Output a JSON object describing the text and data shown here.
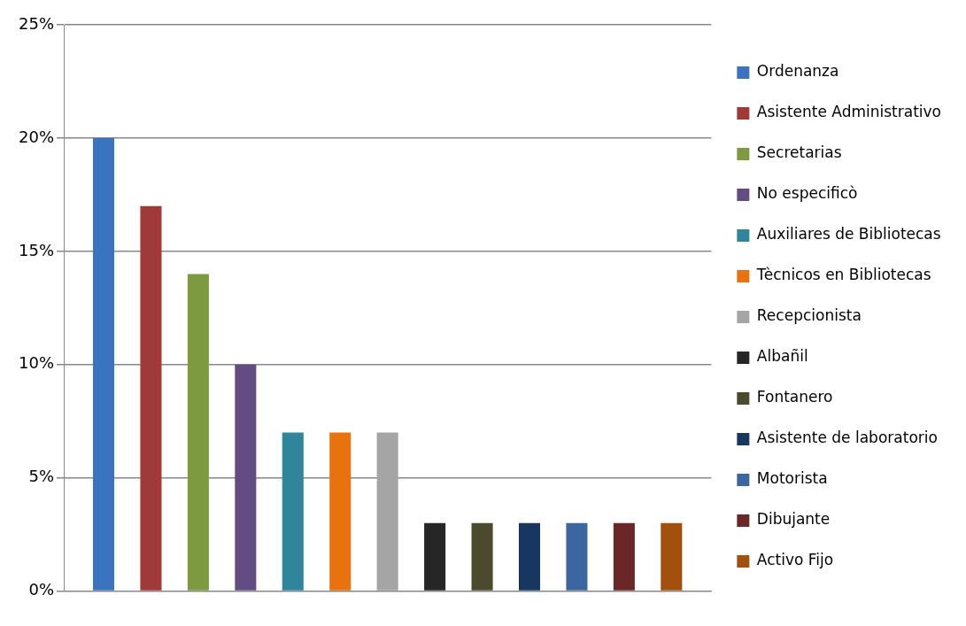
{
  "chart_data": {
    "type": "bar",
    "categories": [
      null
    ],
    "series": [
      {
        "name": "Ordenanza",
        "color": "#3a73c0",
        "values": [
          20
        ]
      },
      {
        "name": "Asistente Administrativo",
        "color": "#a03a38",
        "values": [
          17
        ]
      },
      {
        "name": "Secretarias",
        "color": "#7e9a40",
        "values": [
          14
        ]
      },
      {
        "name": "No especificò",
        "color": "#634c82",
        "values": [
          10
        ]
      },
      {
        "name": "Auxiliares de Bibliotecas",
        "color": "#2f869c",
        "values": [
          7
        ]
      },
      {
        "name": "Tècnicos en Bibliotecas",
        "color": "#e8730e",
        "values": [
          7
        ]
      },
      {
        "name": "Recepcionista",
        "color": "#a5a5a5",
        "values": [
          7
        ]
      },
      {
        "name": "Albañil",
        "color": "#262626",
        "values": [
          3
        ]
      },
      {
        "name": "Fontanero",
        "color": "#4c4a2c",
        "values": [
          3
        ]
      },
      {
        "name": "Asistente de laboratorio",
        "color": "#183760",
        "values": [
          3
        ]
      },
      {
        "name": "Motorista",
        "color": "#3c66a0",
        "values": [
          3
        ]
      },
      {
        "name": "Dibujante",
        "color": "#6a2725",
        "values": [
          3
        ]
      },
      {
        "name": "Activo Fijo",
        "color": "#a4500d",
        "values": [
          3
        ]
      }
    ],
    "ylim": [
      0,
      25
    ],
    "yticks": [
      {
        "value": 0,
        "label": "0%"
      },
      {
        "value": 5,
        "label": "5%"
      },
      {
        "value": 10,
        "label": "10%"
      },
      {
        "value": 15,
        "label": "15%"
      },
      {
        "value": 20,
        "label": "20%"
      },
      {
        "value": 25,
        "label": "25%"
      }
    ],
    "grid": "y",
    "legend": "right"
  }
}
